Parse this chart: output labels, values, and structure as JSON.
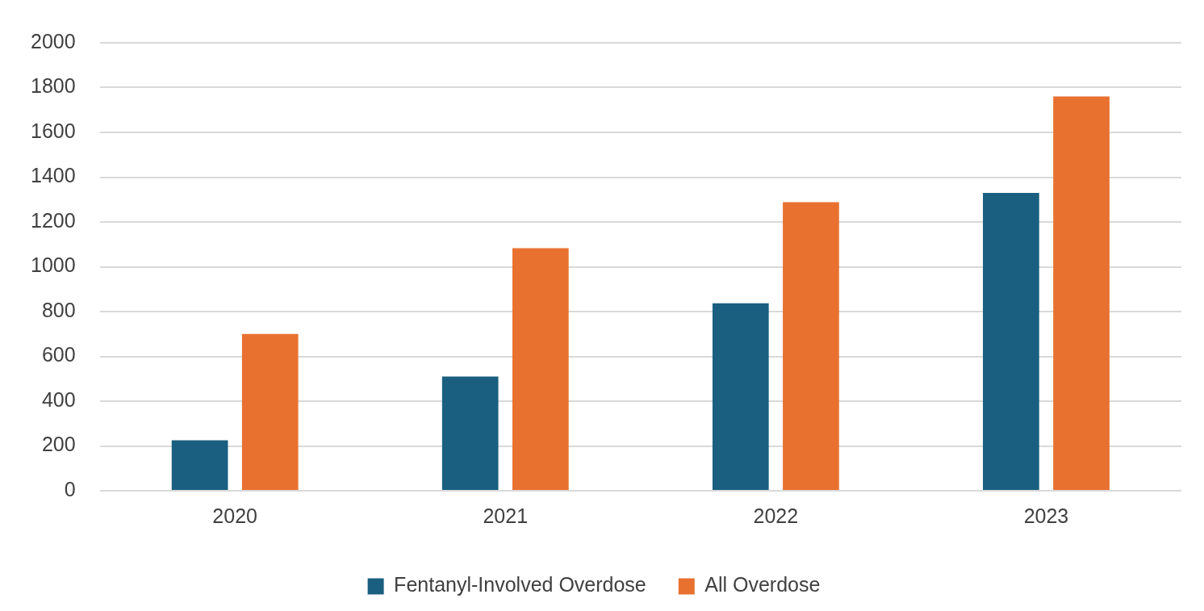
{
  "chart_data": {
    "type": "bar",
    "categories": [
      "2020",
      "2021",
      "2022",
      "2023"
    ],
    "series": [
      {
        "name": "Fentanyl-Involved Overdose",
        "color": "#1a5f80",
        "values": [
          225,
          510,
          837,
          1330
        ]
      },
      {
        "name": "All Overdose",
        "color": "#e87130",
        "values": [
          700,
          1083,
          1288,
          1760
        ]
      }
    ],
    "ylim": [
      0,
      2000
    ],
    "yticks": [
      0,
      200,
      400,
      600,
      800,
      1000,
      1200,
      1400,
      1600,
      1800,
      2000
    ],
    "grid": "y",
    "legend": "bottom"
  }
}
